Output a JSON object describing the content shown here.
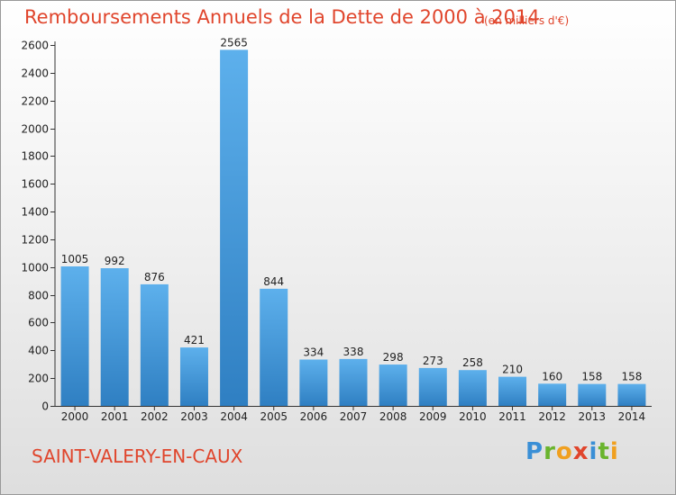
{
  "title": "Remboursements Annuels de la Dette de 2000 à 2014",
  "unit": "(en milliers d'€)",
  "commune": "SAINT-VALERY-EN-CAUX",
  "logo": {
    "p": "P",
    "r": "r",
    "o": "o",
    "x": "x",
    "i": "i",
    "t": "t",
    "i2": "i"
  },
  "colors": {
    "title": "#e0452c",
    "bar_top": "#5db0ec",
    "bar_bottom": "#2f7fc2"
  },
  "chart_data": {
    "type": "bar",
    "categories": [
      "2000",
      "2001",
      "2002",
      "2003",
      "2004",
      "2005",
      "2006",
      "2007",
      "2008",
      "2009",
      "2010",
      "2011",
      "2012",
      "2013",
      "2014"
    ],
    "values": [
      1005,
      992,
      876,
      421,
      2565,
      844,
      334,
      338,
      298,
      273,
      258,
      210,
      160,
      158,
      158
    ],
    "ylim": [
      0,
      2600
    ],
    "yticks": [
      0,
      200,
      400,
      600,
      800,
      1000,
      1200,
      1400,
      1600,
      1800,
      2000,
      2200,
      2400,
      2600
    ],
    "grid": false,
    "data_labels": true
  }
}
